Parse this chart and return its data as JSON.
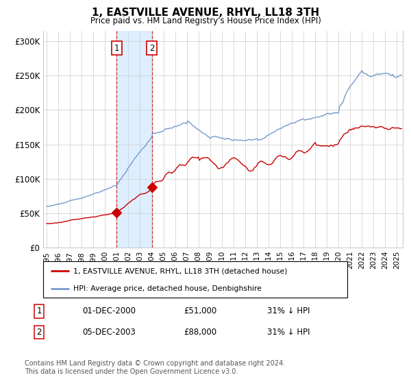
{
  "title": "1, EASTVILLE AVENUE, RHYL, LL18 3TH",
  "subtitle": "Price paid vs. HM Land Registry's House Price Index (HPI)",
  "ylabel_ticks": [
    "£0",
    "£50K",
    "£100K",
    "£150K",
    "£200K",
    "£250K",
    "£300K"
  ],
  "ytick_values": [
    0,
    50000,
    100000,
    150000,
    200000,
    250000,
    300000
  ],
  "ylim": [
    0,
    315000
  ],
  "xlim_start": 1994.7,
  "xlim_end": 2025.5,
  "sale1_x": 2001.0,
  "sale1_y": 51000,
  "sale1_label": "1",
  "sale1_date_str": "01-DEC-2000",
  "sale1_price_str": "£51,000",
  "sale1_hpi": "31% ↓ HPI",
  "sale2_x": 2004.0,
  "sale2_y": 88000,
  "sale2_label": "2",
  "sale2_date_str": "05-DEC-2003",
  "sale2_price_str": "£88,000",
  "sale2_hpi": "31% ↓ HPI",
  "shade_start": 2001.0,
  "shade_end": 2004.0,
  "legend_label_red": "1, EASTVILLE AVENUE, RHYL, LL18 3TH (detached house)",
  "legend_label_blue": "HPI: Average price, detached house, Denbighshire",
  "footnote": "Contains HM Land Registry data © Crown copyright and database right 2024.\nThis data is licensed under the Open Government Licence v3.0.",
  "red_color": "#cc0000",
  "blue_color": "#7799cc",
  "shade_color": "#ddeeff",
  "grid_color": "#cccccc",
  "xtick_years": [
    1995,
    1996,
    1997,
    1998,
    1999,
    2000,
    2001,
    2002,
    2003,
    2004,
    2005,
    2006,
    2007,
    2008,
    2009,
    2010,
    2011,
    2012,
    2013,
    2014,
    2015,
    2016,
    2017,
    2018,
    2019,
    2020,
    2021,
    2022,
    2023,
    2024,
    2025
  ]
}
